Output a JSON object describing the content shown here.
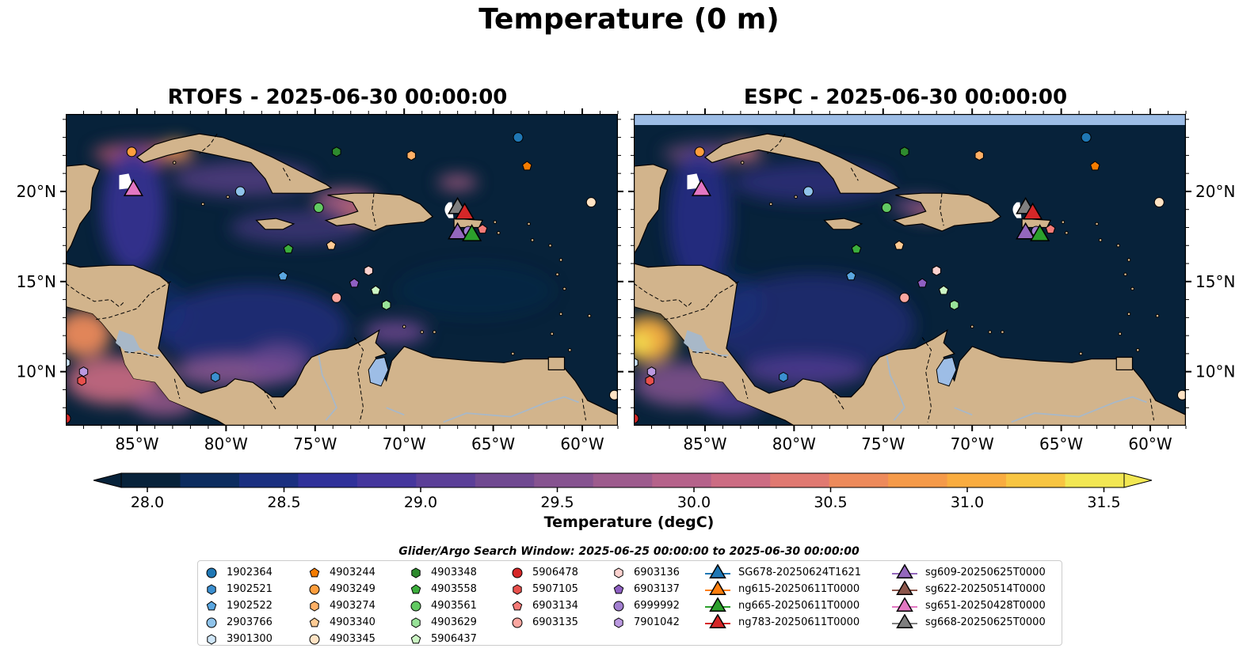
{
  "title": "Temperature (0 m)",
  "panels": [
    {
      "title": "RTOFS - 2025-06-30 00:00:00"
    },
    {
      "title": "ESPC - 2025-06-30 00:00:00"
    }
  ],
  "map_axes": {
    "lon_range": [
      -89,
      -58
    ],
    "lat_range": [
      7,
      24.3
    ],
    "lon_ticks": [
      "85°W",
      "80°W",
      "75°W",
      "70°W",
      "65°W",
      "60°W"
    ],
    "lat_ticks": [
      "20°N",
      "15°N",
      "10°N"
    ]
  },
  "colorbar": {
    "label": "Temperature (degC)",
    "range": [
      27.75,
      31.75
    ],
    "ticks": [
      "28.0",
      "28.5",
      "29.0",
      "29.5",
      "30.0",
      "30.5",
      "31.0",
      "31.5"
    ],
    "extend": "both",
    "colormap": "thermal",
    "colors": [
      "#07223a",
      "#0c2c5f",
      "#1a2f80",
      "#30319a",
      "#45369d",
      "#5b3f98",
      "#704991",
      "#865390",
      "#9d5b8d",
      "#b5628a",
      "#cc6c83",
      "#e07971",
      "#ed8a5b",
      "#f59a49",
      "#f9ac3f",
      "#f8c542",
      "#f2e753"
    ]
  },
  "colors": {
    "land": "#d2b48c",
    "ocean_dark": "#07223a",
    "lake": "#9dbde6",
    "river": "#a8b8c8",
    "espc_top_band": "#9dbde6"
  },
  "search_window_label": "Glider/Argo Search Window: 2025-06-25 00:00:00 to 2025-06-30 00:00:00",
  "legend": [
    {
      "label": "1902364",
      "marker": "circle",
      "color": "#1f77b4"
    },
    {
      "label": "1902521",
      "marker": "hexagon",
      "color": "#3b8fd0"
    },
    {
      "label": "1902522",
      "marker": "pentagon",
      "color": "#5aa6e0"
    },
    {
      "label": "2903766",
      "marker": "circle",
      "color": "#8fc3ea"
    },
    {
      "label": "3901300",
      "marker": "hexagon",
      "color": "#cfe6f8"
    },
    {
      "label": "4903244",
      "marker": "pentagon",
      "color": "#f57c00"
    },
    {
      "label": "4903249",
      "marker": "circle",
      "color": "#ff9e3d"
    },
    {
      "label": "4903274",
      "marker": "hexagon",
      "color": "#ffb066"
    },
    {
      "label": "4903340",
      "marker": "pentagon",
      "color": "#ffcb94"
    },
    {
      "label": "4903345",
      "marker": "circle",
      "color": "#ffe3c4"
    },
    {
      "label": "4903348",
      "marker": "hexagon",
      "color": "#2e8b2e"
    },
    {
      "label": "4903558",
      "marker": "pentagon",
      "color": "#3cae3c"
    },
    {
      "label": "4903561",
      "marker": "circle",
      "color": "#62c962"
    },
    {
      "label": "4903629",
      "marker": "hexagon",
      "color": "#98e298"
    },
    {
      "label": "5906437",
      "marker": "pentagon",
      "color": "#ccf5c4"
    },
    {
      "label": "5906478",
      "marker": "circle",
      "color": "#d62728"
    },
    {
      "label": "5907105",
      "marker": "hexagon",
      "color": "#e8504c"
    },
    {
      "label": "6903134",
      "marker": "pentagon",
      "color": "#f57b78"
    },
    {
      "label": "6903135",
      "marker": "circle",
      "color": "#fba6a0"
    },
    {
      "label": "6903136",
      "marker": "hexagon",
      "color": "#fcd2cf"
    },
    {
      "label": "6903137",
      "marker": "pentagon",
      "color": "#8e5fc2"
    },
    {
      "label": "6999992",
      "marker": "circle",
      "color": "#a27fd0"
    },
    {
      "label": "7901042",
      "marker": "hexagon",
      "color": "#bb99e0"
    },
    {
      "label": "SG678-20250624T1621",
      "marker": "triangle",
      "color": "#1f77b4"
    },
    {
      "label": "ng615-20250611T0000",
      "marker": "triangle",
      "color": "#ff7f0e"
    },
    {
      "label": "ng665-20250611T0000",
      "marker": "triangle",
      "color": "#2ca02c"
    },
    {
      "label": "ng783-20250611T0000",
      "marker": "triangle",
      "color": "#d62728"
    },
    {
      "label": "sg609-20250625T0000",
      "marker": "triangle",
      "color": "#9467bd"
    },
    {
      "label": "sg622-20250514T0000",
      "marker": "triangle",
      "color": "#8c564b"
    },
    {
      "label": "sg651-20250428T0000",
      "marker": "triangle",
      "color": "#e377c2"
    },
    {
      "label": "sg668-20250625T0000",
      "marker": "triangle",
      "color": "#7f7f7f"
    }
  ],
  "argo_positions": [
    {
      "id": "1902364",
      "lon": -63.6,
      "lat": 23.0
    },
    {
      "id": "1902521",
      "lon": -80.6,
      "lat": 9.7
    },
    {
      "id": "1902522",
      "lon": -76.8,
      "lat": 15.3
    },
    {
      "id": "2903766",
      "lon": -79.2,
      "lat": 20.0
    },
    {
      "id": "3901300",
      "lon": -89.0,
      "lat": 10.5
    },
    {
      "id": "4903244",
      "lon": -63.1,
      "lat": 21.4
    },
    {
      "id": "4903249",
      "lon": -85.3,
      "lat": 22.2
    },
    {
      "id": "4903274",
      "lon": -69.6,
      "lat": 22.0
    },
    {
      "id": "4903340",
      "lon": -74.1,
      "lat": 17.0
    },
    {
      "id": "4903345",
      "lon": -59.5,
      "lat": 19.4
    },
    {
      "id": "4903348",
      "lon": -73.8,
      "lat": 22.2
    },
    {
      "id": "4903558",
      "lon": -76.5,
      "lat": 16.8
    },
    {
      "id": "4903561",
      "lon": -74.8,
      "lat": 19.1
    },
    {
      "id": "4903629",
      "lon": -71.0,
      "lat": 13.7
    },
    {
      "id": "5906437",
      "lon": -71.6,
      "lat": 14.5
    },
    {
      "id": "5906478",
      "lon": -89.0,
      "lat": 7.4
    },
    {
      "id": "5907105",
      "lon": -88.1,
      "lat": 9.5
    },
    {
      "id": "6903134",
      "lon": -65.6,
      "lat": 17.9
    },
    {
      "id": "6903135",
      "lon": -73.8,
      "lat": 14.1
    },
    {
      "id": "6903136",
      "lon": -72.0,
      "lat": 15.6
    },
    {
      "id": "6903137",
      "lon": -72.8,
      "lat": 14.9
    },
    {
      "id": "6999992",
      "lon": -66.4,
      "lat": 17.8
    },
    {
      "id": "7901042",
      "lon": -88.0,
      "lat": 10.0
    },
    {
      "id": "extra-58",
      "lon": -58.2,
      "lat": 8.7
    }
  ],
  "glider_positions": [
    {
      "id": "sg651-20250428T0000",
      "lon": -85.2,
      "lat": 20.2
    },
    {
      "id": "sg668-20250625T0000",
      "lon": -67.0,
      "lat": 19.2
    },
    {
      "id": "ng783-20250611T0000",
      "lon": -66.6,
      "lat": 18.9
    },
    {
      "id": "sg609-20250625T0000",
      "lon": -67.0,
      "lat": 17.8
    },
    {
      "id": "ng665-20250611T0000",
      "lon": -66.2,
      "lat": 17.7
    }
  ]
}
